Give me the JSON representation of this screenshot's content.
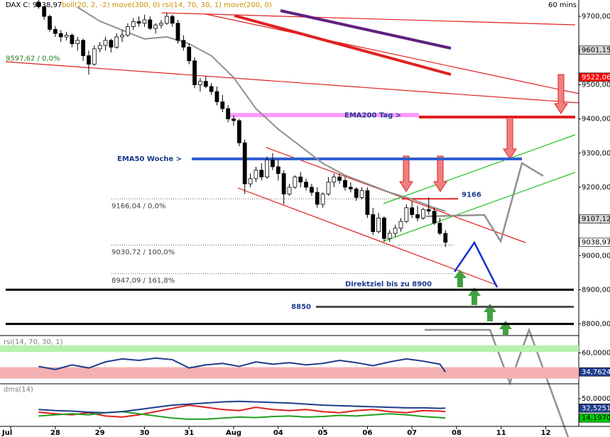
{
  "chart_data": [
    {
      "type": "candlestick",
      "title": "DAX C: 9038,97",
      "subtitle": "boll(20, 2, -2) move(300, 0) rsi(14, 70, 30, 1) move(200, 0)",
      "timeframe": "60 mins",
      "xlim": [
        -0.24,
        12.74
      ],
      "xticks": [
        {
          "value": 0,
          "label": "Jul"
        },
        {
          "value": 1,
          "label": "28"
        },
        {
          "value": 2,
          "label": "29"
        },
        {
          "value": 3,
          "label": "30"
        },
        {
          "value": 4,
          "label": "31"
        },
        {
          "value": 5,
          "label": "Aug"
        },
        {
          "value": 6,
          "label": "04"
        },
        {
          "value": 7,
          "label": "05"
        },
        {
          "value": 8,
          "label": "06"
        },
        {
          "value": 9,
          "label": "07"
        },
        {
          "value": 10,
          "label": "08"
        },
        {
          "value": 11,
          "label": "11"
        },
        {
          "value": 12,
          "label": "12"
        }
      ],
      "ylim": [
        8768,
        9748
      ],
      "yticks": [
        {
          "value": 9700,
          "label": "9700,000"
        },
        {
          "value": 9600,
          "label": "9600,000"
        },
        {
          "value": 9500,
          "label": "9500,000"
        },
        {
          "value": 9400,
          "label": "9400,000"
        },
        {
          "value": 9300,
          "label": "9300,000"
        },
        {
          "value": 9200,
          "label": "9200,000"
        },
        {
          "value": 9100,
          "label": "9100,000"
        },
        {
          "value": 9000,
          "label": "9000,000"
        },
        {
          "value": 8900,
          "label": "8900,000"
        },
        {
          "value": 8800,
          "label": "8800,000"
        }
      ],
      "up_color": "#ffffff",
      "down_color": "#000000",
      "candles": [
        [
          0.625,
          9742,
          9748,
          9722,
          9728
        ],
        [
          0.75,
          9728,
          9732,
          9690,
          9700
        ],
        [
          0.875,
          9700,
          9705,
          9655,
          9662
        ],
        [
          1.0,
          9662,
          9672,
          9640,
          9650
        ],
        [
          1.125,
          9650,
          9660,
          9625,
          9640
        ],
        [
          1.25,
          9640,
          9655,
          9630,
          9645
        ],
        [
          1.375,
          9645,
          9650,
          9610,
          9620
        ],
        [
          1.5,
          9620,
          9640,
          9600,
          9630
        ],
        [
          1.625,
          9630,
          9635,
          9570,
          9585
        ],
        [
          1.75,
          9585,
          9600,
          9530,
          9560
        ],
        [
          1.875,
          9560,
          9615,
          9555,
          9605
        ],
        [
          2.0,
          9605,
          9625,
          9595,
          9615
        ],
        [
          2.125,
          9615,
          9640,
          9600,
          9630
        ],
        [
          2.25,
          9630,
          9635,
          9595,
          9610
        ],
        [
          2.375,
          9610,
          9650,
          9605,
          9640
        ],
        [
          2.5,
          9640,
          9660,
          9625,
          9645
        ],
        [
          2.625,
          9645,
          9680,
          9640,
          9670
        ],
        [
          2.75,
          9670,
          9695,
          9660,
          9685
        ],
        [
          2.875,
          9685,
          9700,
          9670,
          9680
        ],
        [
          3.0,
          9680,
          9705,
          9670,
          9690
        ],
        [
          3.125,
          9690,
          9700,
          9660,
          9665
        ],
        [
          3.25,
          9665,
          9680,
          9650,
          9675
        ],
        [
          3.375,
          9675,
          9690,
          9665,
          9680
        ],
        [
          3.5,
          9680,
          9710,
          9675,
          9700
        ],
        [
          3.625,
          9700,
          9705,
          9670,
          9680
        ],
        [
          3.75,
          9680,
          9690,
          9620,
          9630
        ],
        [
          3.875,
          9630,
          9645,
          9600,
          9610
        ],
        [
          4.0,
          9610,
          9620,
          9560,
          9570
        ],
        [
          4.125,
          9570,
          9580,
          9490,
          9500
        ],
        [
          4.25,
          9500,
          9520,
          9480,
          9510
        ],
        [
          4.375,
          9510,
          9525,
          9490,
          9495
        ],
        [
          4.5,
          9495,
          9505,
          9470,
          9480
        ],
        [
          4.625,
          9480,
          9495,
          9440,
          9450
        ],
        [
          4.75,
          9450,
          9470,
          9420,
          9430
        ],
        [
          4.875,
          9430,
          9440,
          9390,
          9400
        ],
        [
          5.0,
          9400,
          9410,
          9380,
          9395
        ],
        [
          5.125,
          9395,
          9400,
          9320,
          9330
        ],
        [
          5.25,
          9330,
          9340,
          9180,
          9210
        ],
        [
          5.375,
          9210,
          9240,
          9200,
          9225
        ],
        [
          5.5,
          9225,
          9260,
          9215,
          9250
        ],
        [
          5.625,
          9250,
          9270,
          9220,
          9230
        ],
        [
          5.75,
          9230,
          9290,
          9225,
          9280
        ],
        [
          5.875,
          9280,
          9300,
          9250,
          9260
        ],
        [
          6.0,
          9260,
          9280,
          9220,
          9240
        ],
        [
          6.125,
          9240,
          9250,
          9150,
          9180
        ],
        [
          6.25,
          9180,
          9210,
          9175,
          9200
        ],
        [
          6.375,
          9200,
          9235,
          9195,
          9230
        ],
        [
          6.5,
          9230,
          9245,
          9200,
          9215
        ],
        [
          6.625,
          9215,
          9225,
          9190,
          9200
        ],
        [
          6.75,
          9200,
          9210,
          9175,
          9185
        ],
        [
          6.875,
          9185,
          9200,
          9140,
          9150
        ],
        [
          7.0,
          9150,
          9185,
          9140,
          9180
        ],
        [
          7.125,
          9180,
          9230,
          9175,
          9215
        ],
        [
          7.25,
          9215,
          9240,
          9200,
          9230
        ],
        [
          7.375,
          9230,
          9240,
          9210,
          9220
        ],
        [
          7.5,
          9220,
          9230,
          9190,
          9200
        ],
        [
          7.625,
          9200,
          9215,
          9185,
          9195
        ],
        [
          7.75,
          9195,
          9200,
          9160,
          9170
        ],
        [
          7.875,
          9170,
          9200,
          9165,
          9190
        ],
        [
          8.0,
          9190,
          9200,
          9110,
          9120
        ],
        [
          8.125,
          9120,
          9140,
          9060,
          9070
        ],
        [
          8.25,
          9070,
          9125,
          9065,
          9110
        ],
        [
          8.375,
          9110,
          9115,
          9040,
          9050
        ],
        [
          8.5,
          9050,
          9075,
          9040,
          9065
        ],
        [
          8.625,
          9065,
          9090,
          9055,
          9080
        ],
        [
          8.75,
          9080,
          9110,
          9070,
          9100
        ],
        [
          8.875,
          9100,
          9150,
          9095,
          9140
        ],
        [
          9.0,
          9140,
          9160,
          9110,
          9120
        ],
        [
          9.125,
          9120,
          9145,
          9100,
          9110
        ],
        [
          9.25,
          9110,
          9140,
          9105,
          9135
        ],
        [
          9.375,
          9135,
          9170,
          9120,
          9130
        ],
        [
          9.5,
          9130,
          9140,
          9090,
          9095
        ],
        [
          9.625,
          9095,
          9110,
          9060,
          9065
        ],
        [
          9.75,
          9065,
          9075,
          9025,
          9038.97
        ]
      ],
      "series": [
        {
          "color": "#909090",
          "x": [
            1.5,
            2.0,
            2.5,
            3.0,
            3.5,
            4.0,
            4.5,
            5.0,
            5.5,
            6.0,
            6.5,
            7.0,
            7.5,
            8.0,
            8.5,
            9.0,
            9.5,
            9.75
          ],
          "values": [
            9727,
            9686,
            9660,
            9634,
            9640,
            9620,
            9585,
            9521,
            9430,
            9370,
            9320,
            9270,
            9235,
            9210,
            9185,
            9165,
            9140,
            9130
          ]
        }
      ],
      "fib_levels": [
        {
          "value": 9597.62,
          "label": "9597,62 / 0,0%",
          "color": "#208020"
        },
        {
          "value": 9166.04,
          "label": "9166,04 / 0,0%",
          "color": "#404040"
        },
        {
          "value": 9030.72,
          "label": "9030,72 / 100,0%",
          "color": "#404040"
        },
        {
          "value": 8947.09,
          "label": "8947,09 / 161,8%",
          "color": "#404040"
        }
      ],
      "levels": [
        {
          "label": "EMA200 Tag >",
          "value": 9411,
          "color": "#ff99ff"
        },
        {
          "label": "EMA50 Woche >",
          "value": 9283,
          "color": "#3060d0"
        },
        {
          "label": "9166",
          "value": 9166,
          "color": "#e02020"
        },
        {
          "label": "Direktziel bis zu 8900",
          "value": 8900,
          "color": "#000000"
        },
        {
          "label": "8850",
          "value": 8850,
          "color": "#505050"
        },
        {
          "value": 8800,
          "color": "#000000"
        }
      ],
      "markers": [
        {
          "value": 9601.15,
          "label": "9601,15",
          "color": "#d8d8d8",
          "text_color": "#000000"
        },
        {
          "value": 9522.06,
          "label": "9522,06",
          "color": "#ff0000",
          "text_color": "#ffffff"
        },
        {
          "value": 9107.12,
          "label": "9107,12",
          "color": "#d8d8d8",
          "text_color": "#000000"
        },
        {
          "value": 9038.97,
          "label": "9038,97",
          "color": "#ffffff",
          "text_color": "#000000"
        }
      ]
    },
    {
      "type": "line",
      "title": "rsi(14, 70, 30, 1)",
      "ylim": [
        20,
        80
      ],
      "yticks": [
        {
          "value": 60,
          "label": "60,0000"
        }
      ],
      "bands": [
        {
          "from": 61,
          "to": 70,
          "color": "#b8f0b0"
        },
        {
          "from": 26,
          "to": 41,
          "color": "#f4b0b0"
        }
      ],
      "x": [
        0.625,
        1,
        1.375,
        1.75,
        2.125,
        2.5,
        2.875,
        3.25,
        3.625,
        4,
        4.375,
        4.75,
        5.125,
        5.5,
        5.875,
        6.25,
        6.625,
        7,
        7.375,
        7.75,
        8.125,
        8.5,
        8.875,
        9.25,
        9.625,
        9.75
      ],
      "series": [
        {
          "color": "#1f3d8c",
          "values": [
            42,
            38,
            44,
            40,
            48,
            52,
            50,
            53,
            51,
            40,
            44,
            46,
            42,
            48,
            45,
            47,
            44,
            46,
            50,
            47,
            43,
            48,
            52,
            49,
            45,
            34.7624
          ]
        }
      ],
      "markers": [
        {
          "value": 34.7624,
          "label": "34,7624",
          "color": "#1f3d8c",
          "text_color": "#ffffff"
        }
      ]
    },
    {
      "type": "line",
      "title": "dms(14)",
      "ylim": [
        0,
        75
      ],
      "yticks": [
        {
          "value": 50,
          "label": "50,0000"
        }
      ],
      "x": [
        0.625,
        1,
        1.375,
        1.75,
        2.125,
        2.5,
        2.875,
        3.25,
        3.625,
        4,
        4.375,
        4.75,
        5.125,
        5.5,
        5.875,
        6.25,
        6.625,
        7,
        7.375,
        7.75,
        8.125,
        8.5,
        8.875,
        9.25,
        9.625,
        9.75
      ],
      "series": [
        {
          "color": "#e02020",
          "values": [
            25,
            22,
            20,
            24,
            18,
            16,
            20,
            26,
            32,
            38,
            34,
            30,
            28,
            34,
            30,
            28,
            30,
            26,
            24,
            28,
            30,
            26,
            24,
            28,
            27,
            26
          ]
        },
        {
          "color": "#20a020",
          "values": [
            18,
            20,
            22,
            20,
            24,
            26,
            22,
            18,
            14,
            12,
            12,
            14,
            16,
            15,
            17,
            18,
            16,
            17,
            19,
            18,
            20,
            22,
            20,
            17,
            15,
            14.197
          ]
        },
        {
          "color": "#1f3d8c",
          "values": [
            30,
            28,
            27,
            25,
            24,
            26,
            30,
            34,
            38,
            40,
            42,
            44,
            45,
            44,
            43,
            42,
            40,
            38,
            37,
            36,
            35,
            34,
            33,
            33,
            32,
            32.5251
          ]
        }
      ],
      "markers": [
        {
          "value": 32.5251,
          "label": "32,5251",
          "color": "#1f3d8c",
          "text_color": "#ffffff"
        },
        {
          "value": 14.197,
          "label": "14,1970",
          "color": "#00cc00",
          "text_color": "#000000"
        }
      ]
    }
  ]
}
